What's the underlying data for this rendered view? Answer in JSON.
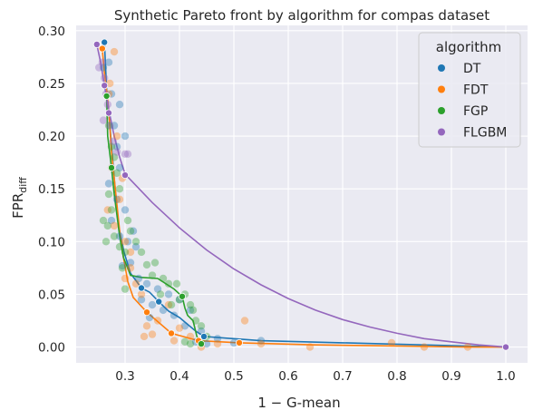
{
  "chart_data": {
    "type": "scatter",
    "title": "Synthetic Pareto front by algorithm for compas dataset",
    "xlabel": "1 − G-mean",
    "ylabel_main": "FPR",
    "ylabel_sub": "diff",
    "xlim": [
      0.21,
      1.04
    ],
    "ylim": [
      -0.015,
      0.305
    ],
    "xticks": [
      "0.3",
      "0.4",
      "0.5",
      "0.6",
      "0.7",
      "0.8",
      "0.9",
      "1.0"
    ],
    "xtick_values": [
      0.3,
      0.4,
      0.5,
      0.6,
      0.7,
      0.8,
      0.9,
      1.0
    ],
    "yticks": [
      "0.00",
      "0.05",
      "0.10",
      "0.15",
      "0.20",
      "0.25",
      "0.30"
    ],
    "ytick_values": [
      0.0,
      0.05,
      0.1,
      0.15,
      0.2,
      0.25,
      0.3
    ],
    "grid": true,
    "legend_position": "top-right",
    "legend": {
      "title": "algorithm",
      "entries": [
        {
          "label": "DT",
          "color": "#1f77b4"
        },
        {
          "label": "FDT",
          "color": "#ff7f0e"
        },
        {
          "label": "FGP",
          "color": "#2ca02c"
        },
        {
          "label": "FLGBM",
          "color": "#9467bd"
        }
      ]
    },
    "series": [
      {
        "name": "DT",
        "color": "#1f77b4",
        "front": [
          [
            0.262,
            0.289
          ],
          [
            0.266,
            0.245
          ],
          [
            0.272,
            0.21
          ],
          [
            0.28,
            0.16
          ],
          [
            0.288,
            0.115
          ],
          [
            0.298,
            0.09
          ],
          [
            0.31,
            0.07
          ],
          [
            0.33,
            0.056
          ],
          [
            0.345,
            0.052
          ],
          [
            0.362,
            0.043
          ],
          [
            0.38,
            0.034
          ],
          [
            0.4,
            0.028
          ],
          [
            0.43,
            0.015
          ],
          [
            0.445,
            0.01
          ],
          [
            0.55,
            0.006
          ],
          [
            0.7,
            0.004
          ],
          [
            1.0,
            0.0
          ]
        ],
        "front_markers": [
          [
            0.262,
            0.289
          ],
          [
            0.33,
            0.056
          ],
          [
            0.362,
            0.043
          ],
          [
            0.445,
            0.01
          ]
        ],
        "cloud": [
          [
            0.27,
            0.27
          ],
          [
            0.275,
            0.24
          ],
          [
            0.28,
            0.21
          ],
          [
            0.285,
            0.19
          ],
          [
            0.29,
            0.17
          ],
          [
            0.27,
            0.155
          ],
          [
            0.285,
            0.14
          ],
          [
            0.3,
            0.13
          ],
          [
            0.275,
            0.12
          ],
          [
            0.29,
            0.105
          ],
          [
            0.305,
            0.1
          ],
          [
            0.32,
            0.095
          ],
          [
            0.31,
            0.08
          ],
          [
            0.295,
            0.077
          ],
          [
            0.325,
            0.065
          ],
          [
            0.34,
            0.06
          ],
          [
            0.33,
            0.045
          ],
          [
            0.35,
            0.04
          ],
          [
            0.37,
            0.035
          ],
          [
            0.36,
            0.055
          ],
          [
            0.38,
            0.05
          ],
          [
            0.39,
            0.03
          ],
          [
            0.41,
            0.02
          ],
          [
            0.42,
            0.035
          ],
          [
            0.43,
            0.005
          ],
          [
            0.45,
            0.003
          ],
          [
            0.47,
            0.008
          ],
          [
            0.5,
            0.004
          ],
          [
            0.55,
            0.006
          ],
          [
            0.3,
            0.2
          ],
          [
            0.26,
            0.265
          ],
          [
            0.29,
            0.23
          ],
          [
            0.315,
            0.11
          ],
          [
            0.345,
            0.028
          ],
          [
            0.4,
            0.045
          ],
          [
            0.44,
            0.015
          ]
        ]
      },
      {
        "name": "FDT",
        "color": "#ff7f0e",
        "front": [
          [
            0.258,
            0.283
          ],
          [
            0.262,
            0.26
          ],
          [
            0.27,
            0.225
          ],
          [
            0.275,
            0.185
          ],
          [
            0.283,
            0.145
          ],
          [
            0.29,
            0.11
          ],
          [
            0.297,
            0.085
          ],
          [
            0.305,
            0.062
          ],
          [
            0.315,
            0.047
          ],
          [
            0.34,
            0.033
          ],
          [
            0.385,
            0.013
          ],
          [
            0.435,
            0.006
          ],
          [
            0.51,
            0.004
          ],
          [
            0.65,
            0.002
          ],
          [
            0.8,
            0.001
          ],
          [
            0.93,
            0.0
          ],
          [
            1.0,
            0.0
          ]
        ],
        "front_markers": [
          [
            0.258,
            0.283
          ],
          [
            0.34,
            0.033
          ],
          [
            0.385,
            0.013
          ],
          [
            0.435,
            0.006
          ],
          [
            0.51,
            0.004
          ]
        ],
        "cloud": [
          [
            0.28,
            0.28
          ],
          [
            0.272,
            0.25
          ],
          [
            0.27,
            0.24
          ],
          [
            0.285,
            0.2
          ],
          [
            0.275,
            0.17
          ],
          [
            0.268,
            0.13
          ],
          [
            0.28,
            0.115
          ],
          [
            0.3,
            0.1
          ],
          [
            0.31,
            0.075
          ],
          [
            0.32,
            0.06
          ],
          [
            0.33,
            0.05
          ],
          [
            0.34,
            0.02
          ],
          [
            0.35,
            0.012
          ],
          [
            0.36,
            0.025
          ],
          [
            0.38,
            0.04
          ],
          [
            0.4,
            0.018
          ],
          [
            0.42,
            0.01
          ],
          [
            0.44,
            0.0
          ],
          [
            0.47,
            0.003
          ],
          [
            0.52,
            0.025
          ],
          [
            0.55,
            0.003
          ],
          [
            0.64,
            0.0
          ],
          [
            0.79,
            0.004
          ],
          [
            0.85,
            0.0
          ],
          [
            0.93,
            0.0
          ],
          [
            0.29,
            0.14
          ],
          [
            0.295,
            0.16
          ],
          [
            0.31,
            0.09
          ],
          [
            0.3,
            0.065
          ],
          [
            0.335,
            0.01
          ],
          [
            0.39,
            0.006
          ]
        ]
      },
      {
        "name": "FGP",
        "color": "#2ca02c",
        "front": [
          [
            0.266,
            0.238
          ],
          [
            0.268,
            0.2
          ],
          [
            0.275,
            0.17
          ],
          [
            0.28,
            0.145
          ],
          [
            0.285,
            0.125
          ],
          [
            0.29,
            0.105
          ],
          [
            0.297,
            0.085
          ],
          [
            0.31,
            0.068
          ],
          [
            0.33,
            0.066
          ],
          [
            0.36,
            0.065
          ],
          [
            0.39,
            0.055
          ],
          [
            0.405,
            0.048
          ],
          [
            0.41,
            0.037
          ],
          [
            0.415,
            0.03
          ],
          [
            0.425,
            0.025
          ],
          [
            0.432,
            0.01
          ],
          [
            0.44,
            0.003
          ]
        ],
        "front_markers": [
          [
            0.266,
            0.238
          ],
          [
            0.275,
            0.17
          ],
          [
            0.405,
            0.048
          ],
          [
            0.44,
            0.003
          ]
        ],
        "cloud": [
          [
            0.27,
            0.21
          ],
          [
            0.275,
            0.19
          ],
          [
            0.28,
            0.18
          ],
          [
            0.285,
            0.165
          ],
          [
            0.27,
            0.145
          ],
          [
            0.275,
            0.13
          ],
          [
            0.268,
            0.115
          ],
          [
            0.28,
            0.105
          ],
          [
            0.29,
            0.095
          ],
          [
            0.3,
            0.09
          ],
          [
            0.295,
            0.075
          ],
          [
            0.31,
            0.11
          ],
          [
            0.32,
            0.1
          ],
          [
            0.33,
            0.09
          ],
          [
            0.34,
            0.078
          ],
          [
            0.35,
            0.068
          ],
          [
            0.37,
            0.065
          ],
          [
            0.38,
            0.06
          ],
          [
            0.395,
            0.06
          ],
          [
            0.4,
            0.045
          ],
          [
            0.41,
            0.05
          ],
          [
            0.42,
            0.04
          ],
          [
            0.425,
            0.035
          ],
          [
            0.43,
            0.025
          ],
          [
            0.44,
            0.02
          ],
          [
            0.45,
            0.01
          ],
          [
            0.41,
            0.005
          ],
          [
            0.42,
            0.003
          ],
          [
            0.44,
            0.005
          ],
          [
            0.3,
            0.055
          ],
          [
            0.26,
            0.12
          ],
          [
            0.265,
            0.1
          ],
          [
            0.29,
            0.15
          ],
          [
            0.305,
            0.12
          ],
          [
            0.355,
            0.08
          ],
          [
            0.365,
            0.05
          ],
          [
            0.385,
            0.04
          ]
        ]
      },
      {
        "name": "FLGBM",
        "color": "#9467bd",
        "front": [
          [
            0.248,
            0.287
          ],
          [
            0.255,
            0.27
          ],
          [
            0.262,
            0.248
          ],
          [
            0.27,
            0.225
          ],
          [
            0.28,
            0.2
          ],
          [
            0.29,
            0.18
          ],
          [
            0.3,
            0.164
          ],
          [
            0.35,
            0.137
          ],
          [
            0.4,
            0.113
          ],
          [
            0.45,
            0.092
          ],
          [
            0.5,
            0.074
          ],
          [
            0.55,
            0.059
          ],
          [
            0.6,
            0.046
          ],
          [
            0.65,
            0.035
          ],
          [
            0.7,
            0.026
          ],
          [
            0.75,
            0.019
          ],
          [
            0.8,
            0.013
          ],
          [
            0.85,
            0.008
          ],
          [
            0.9,
            0.005
          ],
          [
            0.95,
            0.002
          ],
          [
            1.0,
            0.0
          ]
        ],
        "front_markers": [
          [
            0.248,
            0.287
          ],
          [
            0.262,
            0.248
          ],
          [
            0.27,
            0.222
          ],
          [
            0.3,
            0.163
          ],
          [
            1.0,
            0.0
          ]
        ],
        "cloud": [
          [
            0.252,
            0.265
          ],
          [
            0.258,
            0.27
          ],
          [
            0.262,
            0.255
          ],
          [
            0.265,
            0.24
          ],
          [
            0.268,
            0.23
          ],
          [
            0.26,
            0.215
          ],
          [
            0.272,
            0.21
          ],
          [
            0.278,
            0.195
          ],
          [
            0.285,
            0.185
          ],
          [
            0.3,
            0.183
          ],
          [
            0.305,
            0.183
          ],
          [
            0.275,
            0.17
          ]
        ]
      }
    ]
  }
}
